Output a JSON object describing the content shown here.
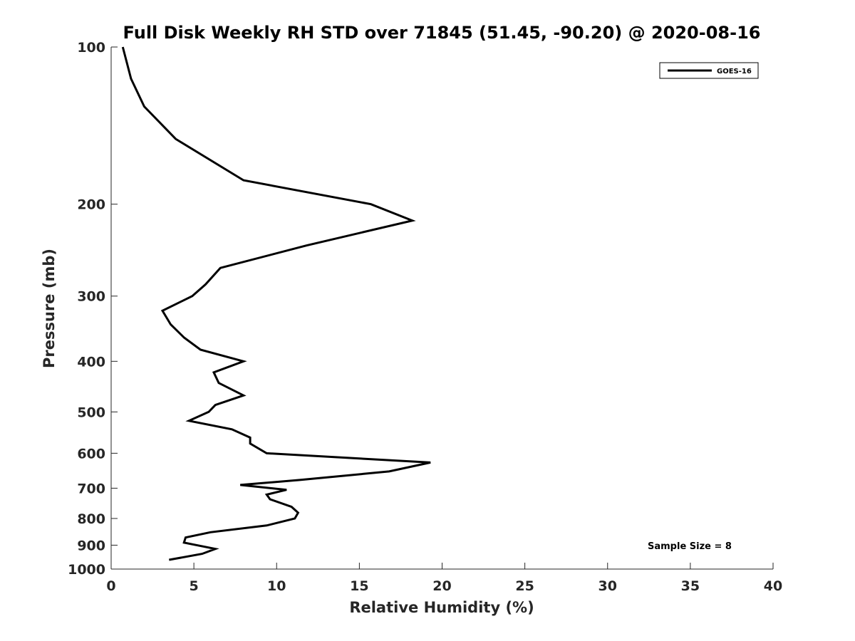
{
  "chart_data": {
    "type": "line",
    "title": "Full Disk Weekly RH STD over 71845 (51.45, -90.20) @ 2020-08-16",
    "xlabel": "Relative Humidity (%)",
    "ylabel": "Pressure (mb)",
    "xlim": [
      0,
      40
    ],
    "ylim": [
      100,
      1000
    ],
    "y_scale": "log",
    "y_reversed": true,
    "x_ticks": [
      0,
      5,
      10,
      15,
      20,
      25,
      30,
      35,
      40
    ],
    "x_tick_labels": [
      "0",
      "5",
      "10",
      "15",
      "20",
      "25",
      "30",
      "35",
      "40"
    ],
    "y_ticks": [
      100,
      200,
      300,
      400,
      500,
      600,
      700,
      800,
      900,
      1000
    ],
    "y_tick_labels": [
      "100",
      "200",
      "300",
      "400",
      "500",
      "600",
      "700",
      "800",
      "900",
      "1000"
    ],
    "grid": false,
    "legend_position": "top-right",
    "annotation": "Sample Size = 8",
    "series": [
      {
        "name": "GOES-16",
        "color": "#000000",
        "x": [
          0.7,
          1.2,
          2.0,
          3.9,
          8.0,
          15.7,
          18.2,
          11.8,
          6.6,
          5.7,
          4.9,
          3.1,
          3.6,
          4.4,
          5.4,
          8.0,
          6.2,
          6.5,
          8.0,
          6.3,
          5.9,
          4.7,
          7.3,
          8.4,
          8.4,
          9.4,
          19.3,
          16.8,
          11.4,
          7.8,
          10.6,
          9.4,
          9.6,
          10.9,
          11.3,
          11.1,
          9.4,
          6.0,
          4.5,
          4.4,
          6.3,
          5.5,
          3.5
        ],
        "y": [
          100,
          115,
          130,
          150,
          180,
          200,
          215,
          240,
          265,
          285,
          300,
          320,
          340,
          360,
          380,
          400,
          420,
          440,
          465,
          485,
          500,
          520,
          540,
          560,
          575,
          600,
          625,
          650,
          675,
          690,
          705,
          720,
          735,
          760,
          780,
          800,
          825,
          850,
          870,
          890,
          915,
          935,
          960
        ]
      }
    ]
  }
}
